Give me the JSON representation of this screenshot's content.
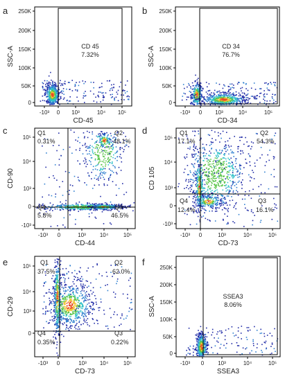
{
  "chart_data": [
    {
      "type": "scatter",
      "panel": "a",
      "xlabel": "CD-45",
      "ylabel": "SSC-A",
      "x_ticks": [
        "-10³",
        "0",
        "10³",
        "10⁴",
        "10⁵"
      ],
      "y_ticks": [
        "0",
        "50K",
        "100K",
        "150K",
        "200K",
        "250K"
      ],
      "gate": {
        "kind": "rectangle",
        "label": "CD 45",
        "value": "7.32%"
      },
      "population": "dense cluster near x≈0, low SSC; sparse events to the right"
    },
    {
      "type": "scatter",
      "panel": "b",
      "xlabel": "CD-34",
      "ylabel": "SSC-A",
      "x_ticks": [
        "-10³",
        "0",
        "10³",
        "10⁴",
        "10⁵"
      ],
      "y_ticks": [
        "0",
        "50K",
        "100K",
        "150K",
        "200K",
        "250K"
      ],
      "gate": {
        "kind": "rectangle",
        "label": "CD 34",
        "value": "76.7%"
      },
      "population": "cluster near x≈0 and a broad population around x≈10³–10⁴, low SSC"
    },
    {
      "type": "scatter",
      "panel": "c",
      "xlabel": "CD-44",
      "ylabel": "CD-90",
      "x_ticks": [
        "-10³",
        "0",
        "10³",
        "10⁴",
        "10⁵"
      ],
      "y_ticks": [
        "-10³",
        "0",
        "10³",
        "10⁴",
        "10⁵"
      ],
      "quadrants": [
        {
          "name": "Q1",
          "value": "0.31%"
        },
        {
          "name": "Q2",
          "value": "48.1%"
        },
        {
          "name": "Q3",
          "value": "46.5%"
        },
        {
          "name": "Q4",
          "value": "5.8%"
        }
      ]
    },
    {
      "type": "scatter",
      "panel": "d",
      "xlabel": "CD-73",
      "ylabel": "CD 105",
      "x_ticks": [
        "-10³",
        "0",
        "10³",
        "10⁴",
        "10⁵"
      ],
      "y_ticks": [
        "-10³",
        "0",
        "10³",
        "10⁴",
        "10⁵"
      ],
      "quadrants": [
        {
          "name": "Q1",
          "value": "17.1%"
        },
        {
          "name": "Q2",
          "value": "54.3%"
        },
        {
          "name": "Q3",
          "value": "16.1%"
        },
        {
          "name": "Q4",
          "value": "12.4%"
        }
      ]
    },
    {
      "type": "scatter",
      "panel": "e",
      "xlabel": "CD-73",
      "ylabel": "CD-29",
      "x_ticks": [
        "-10³",
        "0",
        "10³",
        "10⁴",
        "10⁵"
      ],
      "y_ticks": [
        "0",
        "10³",
        "10⁴",
        "10⁵"
      ],
      "quadrants": [
        {
          "name": "Q1",
          "value": "37.5%"
        },
        {
          "name": "Q2",
          "value": "62.0%"
        },
        {
          "name": "Q3",
          "value": "0.22%"
        },
        {
          "name": "Q4",
          "value": "0.35%"
        }
      ]
    },
    {
      "type": "scatter",
      "panel": "f",
      "xlabel": "SSEA3",
      "ylabel": "SSC-A",
      "x_ticks": [
        "-10³",
        "0",
        "10³",
        "10⁴",
        "10⁵"
      ],
      "y_ticks": [
        "0",
        "50K",
        "100K",
        "150K",
        "200K",
        "250K"
      ],
      "gate": {
        "kind": "rectangle",
        "label": "SSEA3",
        "value": "8.06%"
      },
      "population": "dense cluster near x≈0, low SSC"
    }
  ],
  "density_colors": [
    "#1f2aa6",
    "#2f7fd0",
    "#33c2c9",
    "#5ac54a",
    "#f1c232",
    "#e84b24"
  ]
}
